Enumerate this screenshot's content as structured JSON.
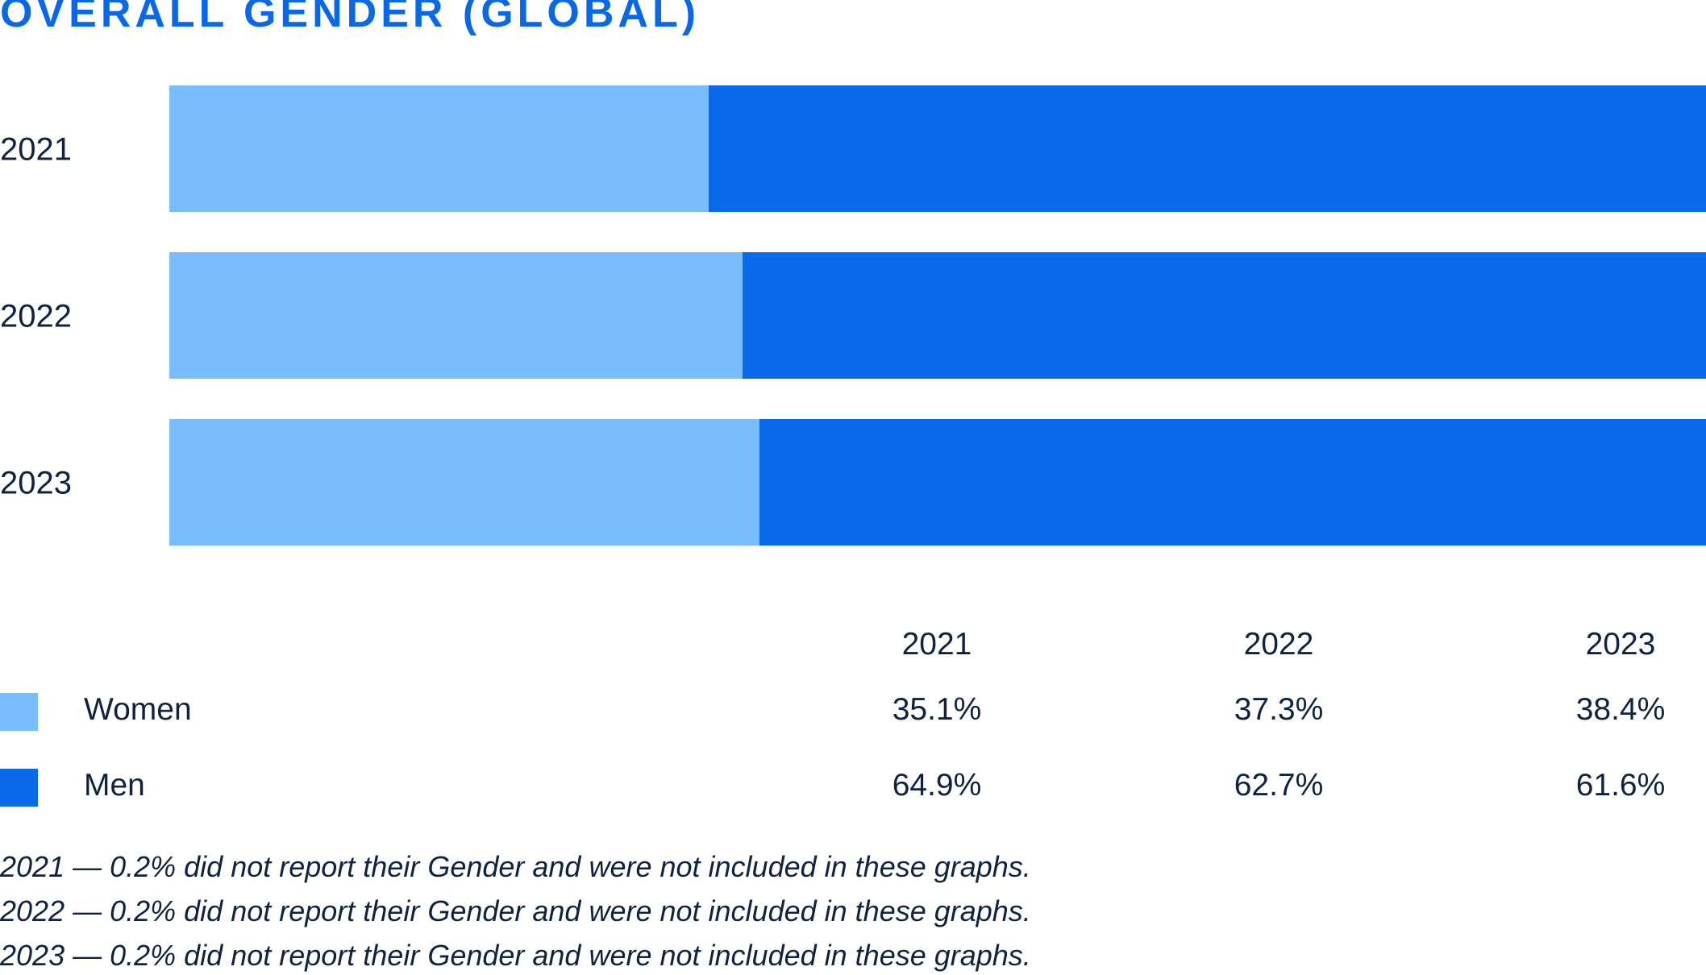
{
  "title": "OVERALL GENDER (GLOBAL)",
  "colors": {
    "women": "#7abdfc",
    "men": "#086aea",
    "title": "#0868e8",
    "text": "#0f2340"
  },
  "chart_data": {
    "type": "bar",
    "orientation": "horizontal",
    "stacked": true,
    "title": "OVERALL GENDER (GLOBAL)",
    "categories": [
      "2021",
      "2022",
      "2023"
    ],
    "series": [
      {
        "name": "Women",
        "values": [
          35.1,
          37.3,
          38.4
        ]
      },
      {
        "name": "Men",
        "values": [
          64.9,
          62.7,
          61.6
        ]
      }
    ],
    "xlim": [
      0,
      100
    ],
    "grid": false,
    "legend": "bottom-left"
  },
  "table": {
    "headers": [
      "2021",
      "2022",
      "2023"
    ],
    "rows": [
      {
        "label": "Women",
        "values": [
          "35.1%",
          "37.3%",
          "38.4%"
        ]
      },
      {
        "label": "Men",
        "values": [
          "64.9%",
          "62.7%",
          "61.6%"
        ]
      }
    ]
  },
  "notes": [
    "2021 — 0.2% did not report their Gender and were not included in these graphs.",
    "2022 — 0.2% did not report their Gender and were not included in these graphs.",
    "2023 — 0.2% did not report their Gender and were not included in these graphs."
  ]
}
